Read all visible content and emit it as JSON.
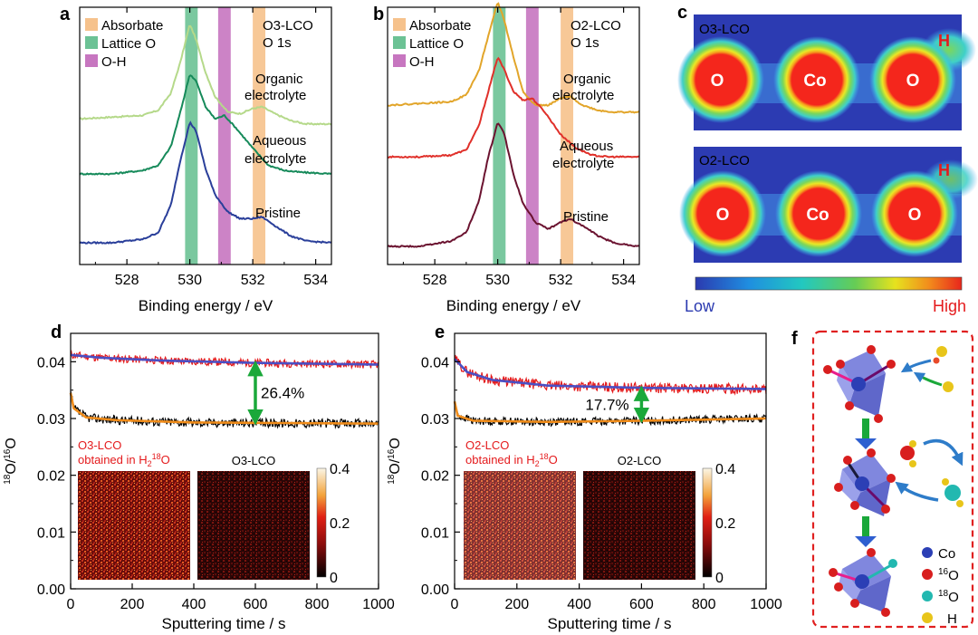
{
  "panels": {
    "a": {
      "letter": "a",
      "title1": "O3-LCO",
      "title2": "O 1s",
      "legend": [
        "Absorbate",
        "Lattice O",
        "O-H"
      ],
      "curve_labels": [
        "Organic",
        "electrolyte",
        "Aqueous",
        "electrolyte",
        "Pristine"
      ]
    },
    "b": {
      "letter": "b",
      "title1": "O2-LCO",
      "title2": "O 1s",
      "legend": [
        "Absorbate",
        "Lattice O",
        "O-H"
      ],
      "curve_labels": [
        "Organic",
        "electrolyte",
        "Aqueous",
        "electrolyte",
        "Pristine"
      ]
    },
    "c": {
      "letter": "c",
      "map1_title": "O3-LCO",
      "map2_title": "O2-LCO",
      "atoms": [
        "O",
        "Co",
        "O"
      ],
      "h_label": "H",
      "low": "Low",
      "high": "High"
    },
    "d": {
      "letter": "d",
      "annotation": "26.4%",
      "red_label1": "O3-LCO",
      "red_label2": "obtained in H",
      "red_sub": "2",
      "red_sup": "18",
      "red_end": "O",
      "map_title": "O3-LCO"
    },
    "e": {
      "letter": "e",
      "annotation": "17.7%",
      "red_label1": "O2-LCO",
      "red_label2": "obtained in H",
      "red_sub": "2",
      "red_sup": "18",
      "red_end": "O",
      "map_title": "O2-LCO"
    },
    "f": {
      "letter": "f",
      "legend": [
        {
          "label": "Co",
          "sup": "",
          "color": "#2b3fb5"
        },
        {
          "label": "O",
          "sup": "16",
          "color": "#d81e1e"
        },
        {
          "label": "O",
          "sup": "18",
          "color": "#22b8b0"
        },
        {
          "label": "H",
          "sup": "",
          "color": "#e8c51a"
        }
      ]
    }
  },
  "colors": {
    "absorbate": "#f6c28c",
    "lattice": "#6cc295",
    "oh": "#c776c0",
    "red": "#e41a1c",
    "blue_fit": "#4a4fc4",
    "orange_fit": "#f08c1a",
    "green_arrow": "#1aa83a"
  },
  "chart_data": [
    {
      "type": "line",
      "id": "a",
      "title": "O3-LCO O 1s",
      "xlabel": "Binding energy / eV",
      "ylabel": "",
      "xlim": [
        526.5,
        534.5
      ],
      "xticks": [
        528,
        530,
        532,
        534
      ],
      "bands": [
        {
          "name": "Lattice O",
          "range": [
            529.85,
            530.25
          ]
        },
        {
          "name": "O-H",
          "range": [
            530.9,
            531.3
          ]
        },
        {
          "name": "Absorbate",
          "range": [
            532.0,
            532.4
          ]
        }
      ],
      "series": [
        {
          "name": "Organic electrolyte",
          "color": "#b5d98a",
          "x": [
            526.5,
            527.5,
            528.5,
            529.0,
            529.4,
            529.7,
            530.0,
            530.2,
            530.5,
            530.8,
            531.2,
            531.6,
            532.0,
            532.3,
            532.7,
            533.2,
            533.7,
            534.5
          ],
          "y": [
            0.72,
            0.73,
            0.74,
            0.77,
            0.87,
            1.05,
            1.27,
            1.18,
            0.99,
            0.85,
            0.76,
            0.75,
            0.78,
            0.79,
            0.75,
            0.71,
            0.69,
            0.69
          ]
        },
        {
          "name": "Aqueous electrolyte",
          "color": "#168a5a",
          "x": [
            526.5,
            527.5,
            528.5,
            529.0,
            529.4,
            529.7,
            530.0,
            530.2,
            530.5,
            530.8,
            531.1,
            531.5,
            532.0,
            532.5,
            533.0,
            533.5,
            534.5
          ],
          "y": [
            0.4,
            0.4,
            0.42,
            0.45,
            0.56,
            0.76,
            0.98,
            0.94,
            0.79,
            0.72,
            0.74,
            0.66,
            0.55,
            0.45,
            0.42,
            0.41,
            0.4
          ]
        },
        {
          "name": "Pristine",
          "color": "#2a3f9a",
          "x": [
            526.5,
            527.5,
            528.5,
            529.0,
            529.4,
            529.7,
            530.0,
            530.2,
            530.5,
            530.8,
            531.2,
            531.6,
            532.0,
            532.3,
            532.7,
            533.2,
            533.7,
            534.5
          ],
          "y": [
            0.0,
            0.0,
            0.02,
            0.06,
            0.22,
            0.48,
            0.7,
            0.65,
            0.43,
            0.28,
            0.18,
            0.14,
            0.14,
            0.15,
            0.1,
            0.04,
            0.01,
            0.0
          ]
        }
      ]
    },
    {
      "type": "line",
      "id": "b",
      "title": "O2-LCO O 1s",
      "xlabel": "Binding energy / eV",
      "ylabel": "",
      "xlim": [
        526.5,
        534.5
      ],
      "xticks": [
        528,
        530,
        532,
        534
      ],
      "bands": [
        {
          "name": "Lattice O",
          "range": [
            529.85,
            530.25
          ]
        },
        {
          "name": "O-H",
          "range": [
            530.9,
            531.3
          ]
        },
        {
          "name": "Absorbate",
          "range": [
            532.0,
            532.4
          ]
        }
      ],
      "series": [
        {
          "name": "Organic electrolyte",
          "color": "#e2a52a",
          "x": [
            526.5,
            527.5,
            528.5,
            529.0,
            529.4,
            529.7,
            530.0,
            530.2,
            530.5,
            530.8,
            531.2,
            531.6,
            532.0,
            532.3,
            532.7,
            533.2,
            533.7,
            534.5
          ],
          "y": [
            0.82,
            0.83,
            0.84,
            0.88,
            1.02,
            1.22,
            1.42,
            1.32,
            1.1,
            0.9,
            0.82,
            0.82,
            0.86,
            0.87,
            0.82,
            0.79,
            0.78,
            0.78
          ]
        },
        {
          "name": "Aqueous electrolyte",
          "color": "#e0302a",
          "x": [
            526.5,
            527.5,
            528.5,
            529.0,
            529.4,
            529.7,
            530.0,
            530.2,
            530.5,
            530.8,
            531.1,
            531.5,
            532.0,
            532.5,
            533.0,
            533.5,
            534.5
          ],
          "y": [
            0.52,
            0.52,
            0.53,
            0.56,
            0.7,
            0.9,
            1.1,
            1.03,
            0.9,
            0.85,
            0.86,
            0.78,
            0.65,
            0.57,
            0.53,
            0.52,
            0.52
          ]
        },
        {
          "name": "Pristine",
          "color": "#6b1330",
          "x": [
            526.5,
            527.5,
            528.5,
            529.0,
            529.4,
            529.7,
            530.0,
            530.2,
            530.5,
            530.8,
            531.2,
            531.6,
            532.0,
            532.3,
            532.7,
            533.2,
            533.7,
            534.5
          ],
          "y": [
            0.0,
            0.0,
            0.03,
            0.08,
            0.26,
            0.52,
            0.72,
            0.66,
            0.42,
            0.25,
            0.14,
            0.1,
            0.14,
            0.16,
            0.12,
            0.06,
            0.02,
            0.0
          ]
        }
      ]
    },
    {
      "type": "line",
      "id": "d",
      "title": "",
      "xlabel": "Sputtering time / s",
      "ylabel": "18O/16O",
      "xlim": [
        0,
        1000
      ],
      "ylim": [
        0,
        0.045
      ],
      "xticks": [
        0,
        200,
        400,
        600,
        800,
        1000
      ],
      "yticks": [
        0.0,
        0.01,
        0.02,
        0.03,
        0.04
      ],
      "yticklabels": [
        "0.00",
        "0.01",
        "0.02",
        "0.03",
        "0.04"
      ],
      "series": [
        {
          "name": "O3-LCO obtained in H2 18O",
          "color": "#e41a1c",
          "base": [
            [
              0,
              0.0412
            ],
            [
              100,
              0.0407
            ],
            [
              300,
              0.0402
            ],
            [
              600,
              0.0398
            ],
            [
              1000,
              0.0395
            ]
          ],
          "noise": 0.0007
        },
        {
          "name": "Fit (H2 18O)",
          "color": "#4a4fc4",
          "base": [
            [
              0,
              0.0412
            ],
            [
              100,
              0.0407
            ],
            [
              300,
              0.0402
            ],
            [
              600,
              0.0398
            ],
            [
              1000,
              0.0395
            ]
          ],
          "noise": 0
        },
        {
          "name": "O3-LCO",
          "color": "#000000",
          "base": [
            [
              0,
              0.0345
            ],
            [
              10,
              0.0318
            ],
            [
              50,
              0.0302
            ],
            [
              150,
              0.0297
            ],
            [
              400,
              0.0293
            ],
            [
              1000,
              0.0291
            ]
          ],
          "noise": 0.0008
        },
        {
          "name": "Fit (O3-LCO)",
          "color": "#f08c1a",
          "base": [
            [
              0,
              0.0345
            ],
            [
              10,
              0.0318
            ],
            [
              50,
              0.0302
            ],
            [
              150,
              0.0297
            ],
            [
              400,
              0.0293
            ],
            [
              1000,
              0.0291
            ]
          ],
          "noise": 0
        }
      ],
      "annotation_x": 600,
      "inset_colorbar": {
        "min": 0,
        "max": 0.4,
        "ticks": [
          0,
          0.2,
          0.4
        ],
        "ticklabels": [
          "0",
          "0.2",
          "0.4"
        ]
      }
    },
    {
      "type": "line",
      "id": "e",
      "title": "",
      "xlabel": "Sputtering time / s",
      "ylabel": "18O/16O",
      "xlim": [
        0,
        1000
      ],
      "ylim": [
        0,
        0.045
      ],
      "xticks": [
        0,
        200,
        400,
        600,
        800,
        1000
      ],
      "yticks": [
        0.0,
        0.01,
        0.02,
        0.03,
        0.04
      ],
      "yticklabels": [
        "0.00",
        "0.01",
        "0.02",
        "0.03",
        "0.04"
      ],
      "series": [
        {
          "name": "O2-LCO obtained in H2 18O",
          "color": "#e41a1c",
          "base": [
            [
              0,
              0.0405
            ],
            [
              40,
              0.0382
            ],
            [
              120,
              0.0368
            ],
            [
              300,
              0.0358
            ],
            [
              600,
              0.0354
            ],
            [
              1000,
              0.0352
            ]
          ],
          "noise": 0.0009
        },
        {
          "name": "Fit (H2 18O)",
          "color": "#4a4fc4",
          "base": [
            [
              0,
              0.0405
            ],
            [
              40,
              0.0382
            ],
            [
              120,
              0.0368
            ],
            [
              300,
              0.0358
            ],
            [
              600,
              0.0354
            ],
            [
              1000,
              0.0352
            ]
          ],
          "noise": 0
        },
        {
          "name": "O2-LCO",
          "color": "#000000",
          "base": [
            [
              0,
              0.033
            ],
            [
              10,
              0.0305
            ],
            [
              60,
              0.0296
            ],
            [
              300,
              0.0294
            ],
            [
              600,
              0.0296
            ],
            [
              1000,
              0.03
            ]
          ],
          "noise": 0.0007
        },
        {
          "name": "Fit (O2-LCO)",
          "color": "#f08c1a",
          "base": [
            [
              0,
              0.033
            ],
            [
              10,
              0.0305
            ],
            [
              60,
              0.0296
            ],
            [
              300,
              0.0294
            ],
            [
              600,
              0.0296
            ],
            [
              1000,
              0.03
            ]
          ],
          "noise": 0
        }
      ],
      "annotation_x": 600,
      "inset_colorbar": {
        "min": 0,
        "max": 0.4,
        "ticks": [
          0,
          0.2,
          0.4
        ],
        "ticklabels": [
          "0",
          "0.2",
          "0.4"
        ]
      }
    }
  ]
}
